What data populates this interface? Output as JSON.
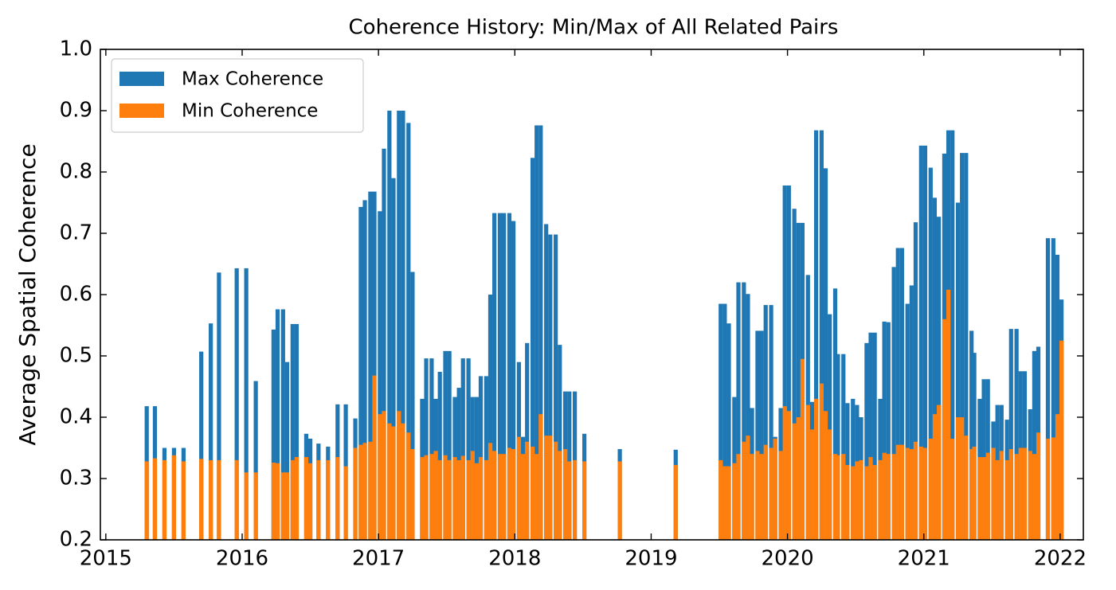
{
  "chart_data": {
    "type": "bar",
    "title": "Coherence History: Min/Max of All Related Pairs",
    "ylabel": "Average Spatial Coherence",
    "x": [
      2015.3,
      2015.36,
      2015.43,
      2015.5,
      2015.57,
      2015.7,
      2015.77,
      2015.83,
      2015.96,
      2016.03,
      2016.1,
      2016.23,
      2016.26,
      2016.3,
      2016.33,
      2016.37,
      2016.4,
      2016.47,
      2016.5,
      2016.56,
      2016.63,
      2016.7,
      2016.76,
      2016.83,
      2016.87,
      2016.9,
      2016.94,
      2016.97,
      2017.01,
      2017.04,
      2017.08,
      2017.11,
      2017.15,
      2017.18,
      2017.22,
      2017.25,
      2017.32,
      2017.35,
      2017.39,
      2017.42,
      2017.45,
      2017.49,
      2017.52,
      2017.56,
      2017.59,
      2017.62,
      2017.66,
      2017.69,
      2017.72,
      2017.75,
      2017.79,
      2017.82,
      2017.85,
      2017.89,
      2017.92,
      2017.96,
      2017.99,
      2018.03,
      2018.06,
      2018.09,
      2018.13,
      2018.16,
      2018.19,
      2018.23,
      2018.26,
      2018.3,
      2018.33,
      2018.37,
      2018.4,
      2018.44,
      2018.51,
      2018.77,
      2019.18,
      2019.51,
      2019.54,
      2019.57,
      2019.61,
      2019.64,
      2019.68,
      2019.71,
      2019.74,
      2019.78,
      2019.81,
      2019.84,
      2019.88,
      2019.91,
      2019.95,
      2019.98,
      2020.01,
      2020.05,
      2020.08,
      2020.11,
      2020.15,
      2020.18,
      2020.21,
      2020.25,
      2020.28,
      2020.31,
      2020.35,
      2020.37,
      2020.41,
      2020.44,
      2020.48,
      2020.51,
      2020.54,
      2020.58,
      2020.61,
      2020.64,
      2020.68,
      2020.71,
      2020.74,
      2020.78,
      2020.81,
      2020.84,
      2020.88,
      2020.91,
      2020.94,
      2020.98,
      2021.01,
      2021.05,
      2021.08,
      2021.11,
      2021.15,
      2021.18,
      2021.21,
      2021.25,
      2021.28,
      2021.31,
      2021.35,
      2021.37,
      2021.41,
      2021.44,
      2021.47,
      2021.51,
      2021.54,
      2021.57,
      2021.61,
      2021.64,
      2021.68,
      2021.71,
      2021.74,
      2021.78,
      2021.81,
      2021.84,
      2021.91,
      2021.95,
      2021.98,
      2022.01
    ],
    "series": [
      {
        "name": "Max Coherence",
        "color": "#1f77b4",
        "values": [
          0.418,
          0.418,
          0.35,
          0.35,
          0.35,
          0.507,
          0.553,
          0.636,
          0.643,
          0.643,
          0.459,
          0.543,
          0.576,
          0.576,
          0.49,
          0.552,
          0.552,
          0.373,
          0.365,
          0.357,
          0.352,
          0.421,
          0.421,
          0.398,
          0.743,
          0.754,
          0.768,
          0.768,
          0.736,
          0.838,
          0.9,
          0.79,
          0.9,
          0.9,
          0.88,
          0.637,
          0.43,
          0.496,
          0.496,
          0.43,
          0.474,
          0.508,
          0.508,
          0.433,
          0.448,
          0.496,
          0.496,
          0.433,
          0.433,
          0.467,
          0.467,
          0.6,
          0.733,
          0.733,
          0.733,
          0.733,
          0.72,
          0.49,
          0.368,
          0.521,
          0.823,
          0.876,
          0.876,
          0.715,
          0.698,
          0.698,
          0.518,
          0.442,
          0.442,
          0.442,
          0.373,
          0.348,
          0.347,
          0.585,
          0.585,
          0.553,
          0.433,
          0.62,
          0.62,
          0.601,
          0.415,
          0.541,
          0.541,
          0.583,
          0.583,
          0.368,
          0.415,
          0.778,
          0.778,
          0.74,
          0.717,
          0.717,
          0.632,
          0.425,
          0.868,
          0.868,
          0.806,
          0.568,
          0.61,
          0.503,
          0.503,
          0.423,
          0.43,
          0.42,
          0.4,
          0.521,
          0.538,
          0.538,
          0.43,
          0.556,
          0.555,
          0.645,
          0.676,
          0.676,
          0.585,
          0.615,
          0.718,
          0.843,
          0.843,
          0.807,
          0.758,
          0.727,
          0.83,
          0.868,
          0.868,
          0.75,
          0.831,
          0.831,
          0.541,
          0.505,
          0.43,
          0.462,
          0.462,
          0.393,
          0.42,
          0.42,
          0.396,
          0.544,
          0.544,
          0.475,
          0.475,
          0.413,
          0.508,
          0.515,
          0.692,
          0.692,
          0.665,
          0.592
        ]
      },
      {
        "name": "Min Coherence",
        "color": "#ff7f0e",
        "values": [
          0.328,
          0.333,
          0.33,
          0.338,
          0.328,
          0.332,
          0.33,
          0.33,
          0.33,
          0.31,
          0.31,
          0.326,
          0.325,
          0.31,
          0.31,
          0.33,
          0.335,
          0.335,
          0.325,
          0.33,
          0.33,
          0.335,
          0.32,
          0.35,
          0.355,
          0.358,
          0.36,
          0.468,
          0.405,
          0.41,
          0.39,
          0.385,
          0.41,
          0.39,
          0.375,
          0.348,
          0.335,
          0.338,
          0.34,
          0.345,
          0.33,
          0.338,
          0.33,
          0.335,
          0.33,
          0.337,
          0.33,
          0.345,
          0.325,
          0.335,
          0.33,
          0.358,
          0.345,
          0.34,
          0.34,
          0.35,
          0.348,
          0.368,
          0.34,
          0.36,
          0.352,
          0.34,
          0.405,
          0.37,
          0.37,
          0.36,
          0.345,
          0.348,
          0.328,
          0.33,
          0.328,
          0.328,
          0.322,
          0.33,
          0.32,
          0.32,
          0.325,
          0.34,
          0.36,
          0.37,
          0.34,
          0.345,
          0.34,
          0.355,
          0.35,
          0.365,
          0.345,
          0.418,
          0.41,
          0.39,
          0.4,
          0.495,
          0.42,
          0.38,
          0.43,
          0.455,
          0.41,
          0.38,
          0.34,
          0.338,
          0.34,
          0.322,
          0.32,
          0.328,
          0.33,
          0.32,
          0.335,
          0.322,
          0.33,
          0.342,
          0.34,
          0.34,
          0.355,
          0.355,
          0.35,
          0.348,
          0.36,
          0.352,
          0.35,
          0.365,
          0.405,
          0.42,
          0.56,
          0.608,
          0.365,
          0.4,
          0.4,
          0.37,
          0.348,
          0.352,
          0.335,
          0.335,
          0.342,
          0.35,
          0.33,
          0.345,
          0.33,
          0.348,
          0.34,
          0.35,
          0.35,
          0.345,
          0.34,
          0.375,
          0.365,
          0.367,
          0.405,
          0.525
        ]
      }
    ],
    "xlim": [
      2014.96,
      2022.17
    ],
    "xticks": [
      2015,
      2016,
      2017,
      2018,
      2019,
      2020,
      2021,
      2022
    ],
    "ylim": [
      0.2,
      1.0
    ],
    "yticks": [
      0.2,
      0.3,
      0.4,
      0.5,
      0.6,
      0.7,
      0.8,
      0.9,
      {
        "value": 1.0,
        "label": "1.0"
      }
    ],
    "legend": "upper left"
  }
}
